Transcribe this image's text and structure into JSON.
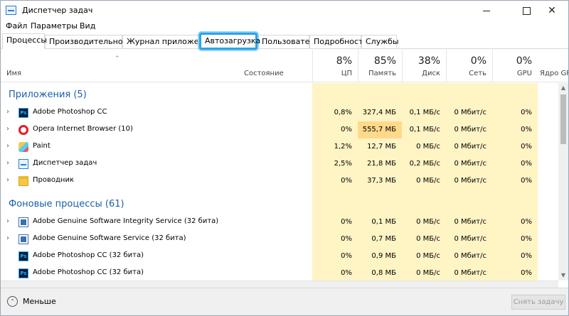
{
  "window": {
    "title": "Диспетчер задач",
    "controls": {
      "minimize": "",
      "maximize": "",
      "close": "✕"
    }
  },
  "menu": [
    "Файл",
    "Параметры",
    "Вид"
  ],
  "tabs": [
    "Процессы",
    "Производительность",
    "Журнал приложений",
    "Автозагрузка",
    "Пользователи",
    "Подробности",
    "Службы"
  ],
  "header": {
    "name": "Имя",
    "status": "Состояние",
    "cpu": {
      "pct": "8%",
      "label": "ЦП"
    },
    "memory": {
      "pct": "85%",
      "label": "Память"
    },
    "disk": {
      "pct": "38%",
      "label": "Диск"
    },
    "network": {
      "pct": "0%",
      "label": "Сеть"
    },
    "gpu": {
      "pct": "0%",
      "label": "GPU"
    },
    "gpu_engine": "Ядро GPU"
  },
  "groups": {
    "apps": "Приложения (5)",
    "background": "Фоновые процессы (61)"
  },
  "apps": [
    {
      "name": "Adobe Photoshop CC",
      "cpu": "0,8%",
      "mem": "327,4 МБ",
      "disk": "0,1 МБ/с",
      "net": "0 Мбит/с",
      "gpu": "0%",
      "icon": "photoshop-icon"
    },
    {
      "name": "Opera Internet Browser (10)",
      "cpu": "0%",
      "mem": "555,7 МБ",
      "disk": "0,1 МБ/с",
      "net": "0 Мбит/с",
      "gpu": "0%",
      "icon": "opera-icon"
    },
    {
      "name": "Paint",
      "cpu": "1,2%",
      "mem": "12,7 МБ",
      "disk": "0 МБ/с",
      "net": "0 Мбит/с",
      "gpu": "0%",
      "icon": "paint-icon"
    },
    {
      "name": "Диспетчер задач",
      "cpu": "2,5%",
      "mem": "21,8 МБ",
      "disk": "0,2 МБ/с",
      "net": "0 Мбит/с",
      "gpu": "0%",
      "icon": "task-manager-icon"
    },
    {
      "name": "Проводник",
      "cpu": "0%",
      "mem": "37,3 МБ",
      "disk": "0 МБ/с",
      "net": "0 Мбит/с",
      "gpu": "0%",
      "icon": "explorer-icon"
    }
  ],
  "background": [
    {
      "name": "Adobe Genuine Software Integrity Service (32 бита)",
      "cpu": "0%",
      "mem": "0,1 МБ",
      "disk": "0 МБ/с",
      "net": "0 Мбит/с",
      "gpu": "0%",
      "icon": "service-icon"
    },
    {
      "name": "Adobe Genuine Software Service (32 бита)",
      "cpu": "0%",
      "mem": "0,7 МБ",
      "disk": "0 МБ/с",
      "net": "0 Мбит/с",
      "gpu": "0%",
      "icon": "service-icon"
    },
    {
      "name": "Adobe Photoshop CC (32 бита)",
      "cpu": "0%",
      "mem": "0,9 МБ",
      "disk": "0 МБ/с",
      "net": "0 Мбит/с",
      "gpu": "0%",
      "icon": "photoshop-icon"
    },
    {
      "name": "Adobe Photoshop CC (32 бита)",
      "cpu": "0%",
      "mem": "0,8 МБ",
      "disk": "0 МБ/с",
      "net": "0 Мбит/с",
      "gpu": "0%",
      "icon": "photoshop-icon"
    }
  ],
  "footer": {
    "less": "Меньше",
    "end_task": "Снять задачу"
  },
  "colors": {
    "group_title": "#1c5fa6",
    "metric_bg": "#fff4c4",
    "metric_hot": "#ffd98a",
    "highlight": "#2aa4e8"
  }
}
